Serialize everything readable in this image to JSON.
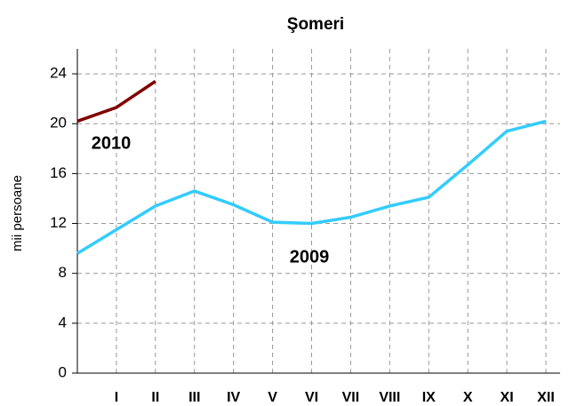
{
  "chart_data": {
    "type": "line",
    "title": "Şomeri",
    "y_label": "mii persoane",
    "categories": [
      null,
      "I",
      "II",
      "III",
      "IV",
      "V",
      "VI",
      "VII",
      "VIII",
      "IX",
      "X",
      "XI",
      "XII"
    ],
    "series": [
      {
        "name": "2009",
        "color": "#33ccff",
        "values": [
          9.6,
          11.5,
          13.4,
          14.6,
          13.5,
          12.1,
          12.0,
          12.5,
          13.4,
          14.1,
          16.7,
          19.4,
          20.2
        ]
      },
      {
        "name": "2010",
        "color": "#800000",
        "values": [
          20.2,
          21.3,
          23.4,
          null,
          null,
          null,
          null,
          null,
          null,
          null,
          null,
          null,
          null
        ]
      }
    ],
    "ylim": [
      0,
      26
    ],
    "yticks": [
      0,
      4,
      8,
      12,
      16,
      20,
      24
    ],
    "grid": true
  }
}
